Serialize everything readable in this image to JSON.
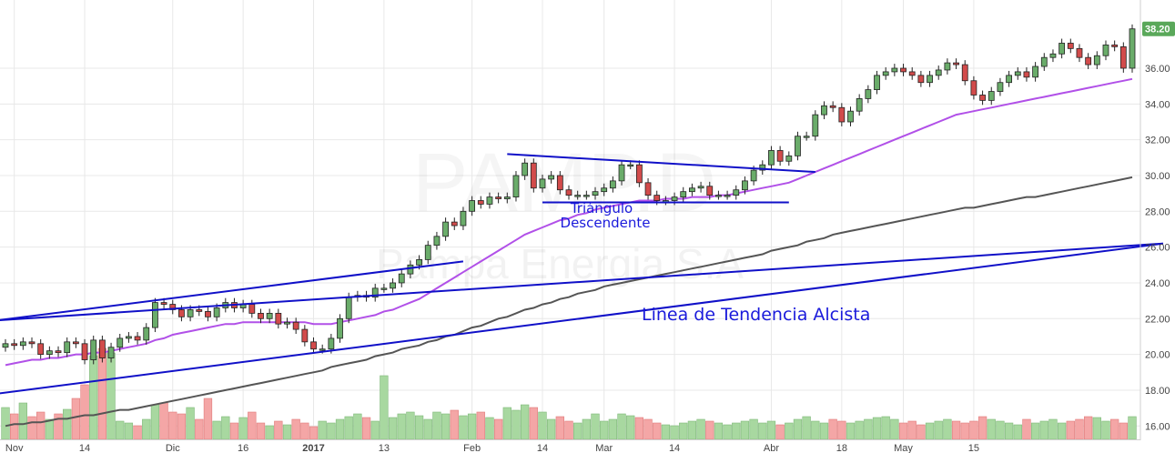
{
  "chart_data": {
    "type": "candlestick",
    "watermark": {
      "ticker": "PAMP.D",
      "company": "Pampa Energia S.A"
    },
    "last_price": "38.20",
    "colors": {
      "up": "#6aac6a",
      "down": "#d24b4b",
      "vol_up": "#a8d8a0",
      "vol_down": "#f4a6a6",
      "sma_fast": "#b150e8",
      "sma_slow": "#555555",
      "trend": "#1010c8",
      "grid": "#e8e8e8",
      "last_price_bg": "#5aa85a"
    },
    "ylim": [
      15.2,
      39.0
    ],
    "y_ticks": [
      "16.00",
      "18.00",
      "20.00",
      "22.00",
      "24.00",
      "26.00",
      "28.00",
      "30.00",
      "32.00",
      "34.00",
      "36.00"
    ],
    "x_ticks": [
      {
        "label": "Nov",
        "bar": 1
      },
      {
        "label": "14",
        "bar": 9
      },
      {
        "label": "Dic",
        "bar": 19
      },
      {
        "label": "16",
        "bar": 27
      },
      {
        "label": "2017",
        "bar": 35
      },
      {
        "label": "13",
        "bar": 43
      },
      {
        "label": "Feb",
        "bar": 53
      },
      {
        "label": "14",
        "bar": 61
      },
      {
        "label": "Mar",
        "bar": 68
      },
      {
        "label": "14",
        "bar": 76
      },
      {
        "label": "Abr",
        "bar": 87
      },
      {
        "label": "18",
        "bar": 95
      },
      {
        "label": "May",
        "bar": 102
      },
      {
        "label": "15",
        "bar": 110
      }
    ],
    "close": [
      20.6,
      20.5,
      20.7,
      20.6,
      20.0,
      20.2,
      20.1,
      20.7,
      20.6,
      19.7,
      20.8,
      19.8,
      20.4,
      20.9,
      21.0,
      20.8,
      21.5,
      22.9,
      22.8,
      22.5,
      22.1,
      22.5,
      22.4,
      22.1,
      22.6,
      22.9,
      22.6,
      22.8,
      22.3,
      22.0,
      22.3,
      21.7,
      21.8,
      21.4,
      20.7,
      20.3,
      20.3,
      20.9,
      22.0,
      23.2,
      23.3,
      23.2,
      23.7,
      23.7,
      24.0,
      24.5,
      25.0,
      25.3,
      26.1,
      26.6,
      27.4,
      27.2,
      28.0,
      28.6,
      28.4,
      28.8,
      28.7,
      28.8,
      30.0,
      30.7,
      29.3,
      29.8,
      30.0,
      29.2,
      28.9,
      28.9,
      28.9,
      29.1,
      29.3,
      29.7,
      30.6,
      30.6,
      29.6,
      28.9,
      28.6,
      28.6,
      28.8,
      29.1,
      29.3,
      29.4,
      28.9,
      28.9,
      28.9,
      29.2,
      29.7,
      30.3,
      30.6,
      31.4,
      30.8,
      31.1,
      32.2,
      32.2,
      33.4,
      33.9,
      33.8,
      33.0,
      33.6,
      34.3,
      34.8,
      35.6,
      35.8,
      36.0,
      35.8,
      35.6,
      35.2,
      35.6,
      35.9,
      36.3,
      36.2,
      35.3,
      34.5,
      34.2,
      34.7,
      35.2,
      35.6,
      35.8,
      35.5,
      36.1,
      36.6,
      36.8,
      37.4,
      37.1,
      36.6,
      36.2,
      36.7,
      37.3,
      37.2,
      36.0,
      38.2
    ],
    "ma_fast": [
      19.4,
      19.5,
      19.6,
      19.7,
      19.7,
      19.8,
      19.8,
      19.9,
      20.0,
      20.0,
      20.1,
      20.1,
      20.2,
      20.3,
      20.4,
      20.5,
      20.6,
      20.8,
      20.9,
      21.1,
      21.2,
      21.3,
      21.4,
      21.5,
      21.6,
      21.7,
      21.7,
      21.8,
      21.8,
      21.8,
      21.8,
      21.8,
      21.8,
      21.8,
      21.8,
      21.7,
      21.7,
      21.7,
      21.8,
      21.9,
      22.0,
      22.1,
      22.2,
      22.4,
      22.5,
      22.7,
      22.9,
      23.1,
      23.4,
      23.7,
      24.0,
      24.3,
      24.6,
      24.9,
      25.2,
      25.5,
      25.8,
      26.1,
      26.4,
      26.7,
      26.9,
      27.1,
      27.3,
      27.5,
      27.6,
      27.8,
      27.9,
      28.1,
      28.2,
      28.3,
      28.4,
      28.5,
      28.6,
      28.6,
      28.6,
      28.7,
      28.7,
      28.7,
      28.8,
      28.8,
      28.8,
      28.9,
      28.9,
      29.0,
      29.1,
      29.2,
      29.3,
      29.4,
      29.5,
      29.6,
      29.8,
      30.0,
      30.2,
      30.4,
      30.6,
      30.8,
      31.0,
      31.2,
      31.4,
      31.6,
      31.8,
      32.0,
      32.2,
      32.4,
      32.6,
      32.8,
      33.0,
      33.2,
      33.4,
      33.5,
      33.6,
      33.7,
      33.8,
      33.9,
      34.0,
      34.1,
      34.2,
      34.3,
      34.4,
      34.5,
      34.6,
      34.7,
      34.8,
      34.9,
      35.0,
      35.1,
      35.2,
      35.3,
      35.4
    ],
    "ma_slow": [
      16.0,
      16.1,
      16.1,
      16.2,
      16.2,
      16.3,
      16.4,
      16.4,
      16.5,
      16.6,
      16.6,
      16.7,
      16.8,
      16.9,
      16.9,
      17.0,
      17.1,
      17.2,
      17.3,
      17.4,
      17.5,
      17.6,
      17.7,
      17.8,
      17.9,
      18.0,
      18.1,
      18.2,
      18.3,
      18.4,
      18.5,
      18.6,
      18.7,
      18.8,
      18.9,
      19.0,
      19.1,
      19.3,
      19.4,
      19.5,
      19.6,
      19.7,
      19.9,
      20.0,
      20.1,
      20.3,
      20.4,
      20.5,
      20.7,
      20.8,
      21.0,
      21.1,
      21.3,
      21.5,
      21.6,
      21.8,
      22.0,
      22.1,
      22.3,
      22.5,
      22.6,
      22.8,
      22.9,
      23.1,
      23.2,
      23.4,
      23.5,
      23.6,
      23.8,
      23.9,
      24.0,
      24.1,
      24.2,
      24.3,
      24.4,
      24.5,
      24.6,
      24.7,
      24.8,
      24.9,
      25.0,
      25.1,
      25.2,
      25.3,
      25.4,
      25.5,
      25.6,
      25.8,
      25.9,
      26.0,
      26.1,
      26.3,
      26.4,
      26.5,
      26.7,
      26.8,
      26.9,
      27.0,
      27.1,
      27.2,
      27.3,
      27.4,
      27.5,
      27.6,
      27.7,
      27.8,
      27.9,
      28.0,
      28.1,
      28.2,
      28.2,
      28.3,
      28.4,
      28.5,
      28.6,
      28.7,
      28.8,
      28.8,
      28.9,
      29.0,
      29.1,
      29.2,
      29.3,
      29.4,
      29.5,
      29.6,
      29.7,
      29.8,
      29.9
    ],
    "volume": [
      35,
      28,
      40,
      25,
      30,
      22,
      28,
      33,
      45,
      60,
      92,
      100,
      95,
      20,
      18,
      15,
      22,
      38,
      40,
      30,
      28,
      35,
      22,
      45,
      20,
      25,
      18,
      24,
      30,
      18,
      15,
      20,
      16,
      22,
      18,
      14,
      20,
      18,
      22,
      25,
      28,
      24,
      20,
      70,
      24,
      28,
      30,
      26,
      22,
      30,
      28,
      32,
      26,
      28,
      30,
      24,
      22,
      35,
      32,
      38,
      35,
      30,
      22,
      25,
      20,
      18,
      22,
      28,
      20,
      22,
      28,
      26,
      24,
      22,
      18,
      16,
      15,
      18,
      20,
      22,
      20,
      18,
      16,
      18,
      20,
      22,
      18,
      20,
      16,
      18,
      22,
      25,
      20,
      18,
      22,
      20,
      18,
      20,
      22,
      24,
      25,
      22,
      18,
      20,
      16,
      18,
      20,
      22,
      20,
      18,
      20,
      25,
      22,
      20,
      18,
      16,
      22,
      18,
      20,
      22,
      18,
      20,
      22,
      25,
      24,
      20,
      22,
      18,
      25
    ],
    "trendlines": [
      {
        "x1": -1,
        "y1": 21.9,
        "x2": 131.5,
        "y2": 26.2
      },
      {
        "x1": -1,
        "y1": 17.8,
        "x2": 131.5,
        "y2": 26.2
      },
      {
        "x1": -1,
        "y1": 21.9,
        "x2": 52,
        "y2": 25.2
      },
      {
        "x1": 57,
        "y1": 31.2,
        "x2": 92,
        "y2": 30.2
      },
      {
        "x1": 61,
        "y1": 28.5,
        "x2": 89,
        "y2": 28.5
      }
    ],
    "annotations": {
      "triangle_line1": "Triángulo",
      "triangle_line2": "Descendente",
      "trend": "Linea de Tendencia Alcista"
    }
  }
}
